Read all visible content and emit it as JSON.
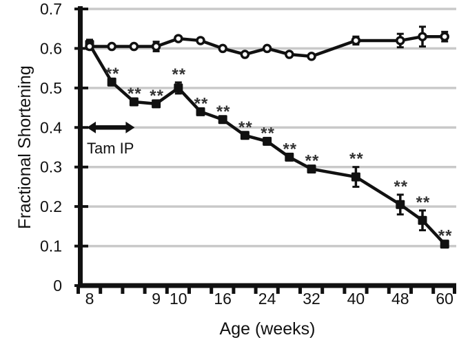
{
  "chart_data": {
    "type": "line",
    "title": "",
    "xlabel": "Age (weeks)",
    "ylabel": "Fractional Shortening",
    "ylim": [
      0,
      0.7
    ],
    "grid": true,
    "background_color": "#ffffff",
    "grid_color": "#c9c9c9",
    "line_color": "#111111",
    "sig_color": "#333333",
    "sig_symbol": "**",
    "x_slot_count": 17,
    "yticks": [
      {
        "v": 0.0,
        "label": "0"
      },
      {
        "v": 0.1,
        "label": "0.1"
      },
      {
        "v": 0.2,
        "label": "0.2"
      },
      {
        "v": 0.3,
        "label": "0.3"
      },
      {
        "v": 0.4,
        "label": "0.4"
      },
      {
        "v": 0.5,
        "label": "0.5"
      },
      {
        "v": 0.6,
        "label": "0.6"
      },
      {
        "v": 0.7,
        "label": "0.7"
      }
    ],
    "xticks": [
      {
        "slot": 0,
        "label": "8"
      },
      {
        "slot": 3,
        "label": "9"
      },
      {
        "slot": 4,
        "label": "10"
      },
      {
        "slot": 6,
        "label": "16"
      },
      {
        "slot": 8,
        "label": "24"
      },
      {
        "slot": 10,
        "label": "32"
      },
      {
        "slot": 12,
        "label": "40"
      },
      {
        "slot": 14,
        "label": "48"
      },
      {
        "slot": 16,
        "label": "60"
      }
    ],
    "annotation": {
      "label": "Tam IP",
      "arrow_slot_span": [
        0,
        2
      ],
      "arrow_v": 0.4
    },
    "series": [
      {
        "name": "series-filled-squares",
        "marker": "square-filled",
        "points": [
          {
            "slot": 0,
            "v": 0.61,
            "err": 0.012,
            "sig": false
          },
          {
            "slot": 1,
            "v": 0.515,
            "err": 0,
            "sig": true
          },
          {
            "slot": 2,
            "v": 0.465,
            "err": 0,
            "sig": true
          },
          {
            "slot": 3,
            "v": 0.46,
            "err": 0,
            "sig": true
          },
          {
            "slot": 4,
            "v": 0.5,
            "err": 0.014,
            "sig": true
          },
          {
            "slot": 5,
            "v": 0.44,
            "err": 0,
            "sig": true
          },
          {
            "slot": 6,
            "v": 0.42,
            "err": 0,
            "sig": true
          },
          {
            "slot": 7,
            "v": 0.38,
            "err": 0,
            "sig": true
          },
          {
            "slot": 8,
            "v": 0.365,
            "err": 0,
            "sig": true
          },
          {
            "slot": 9,
            "v": 0.325,
            "err": 0,
            "sig": true
          },
          {
            "slot": 10,
            "v": 0.295,
            "err": 0,
            "sig": true
          },
          {
            "slot": 12,
            "v": 0.275,
            "err": 0.025,
            "sig": true
          },
          {
            "slot": 14,
            "v": 0.205,
            "err": 0.025,
            "sig": true
          },
          {
            "slot": 15,
            "v": 0.165,
            "err": 0.025,
            "sig": true
          },
          {
            "slot": 16,
            "v": 0.105,
            "err": 0,
            "sig": true
          }
        ]
      },
      {
        "name": "series-open-circles",
        "marker": "circle-open",
        "points": [
          {
            "slot": 0,
            "v": 0.605,
            "err": 0,
            "sig": false
          },
          {
            "slot": 1,
            "v": 0.605,
            "err": 0,
            "sig": false
          },
          {
            "slot": 2,
            "v": 0.605,
            "err": 0,
            "sig": false
          },
          {
            "slot": 3,
            "v": 0.605,
            "err": 0.012,
            "sig": false
          },
          {
            "slot": 4,
            "v": 0.625,
            "err": 0,
            "sig": false
          },
          {
            "slot": 5,
            "v": 0.62,
            "err": 0,
            "sig": false
          },
          {
            "slot": 6,
            "v": 0.6,
            "err": 0,
            "sig": false
          },
          {
            "slot": 7,
            "v": 0.585,
            "err": 0,
            "sig": false
          },
          {
            "slot": 8,
            "v": 0.6,
            "err": 0,
            "sig": false
          },
          {
            "slot": 9,
            "v": 0.585,
            "err": 0,
            "sig": false
          },
          {
            "slot": 10,
            "v": 0.58,
            "err": 0,
            "sig": false
          },
          {
            "slot": 12,
            "v": 0.62,
            "err": 0.01,
            "sig": false
          },
          {
            "slot": 14,
            "v": 0.62,
            "err": 0.017,
            "sig": false
          },
          {
            "slot": 15,
            "v": 0.63,
            "err": 0.025,
            "sig": false
          },
          {
            "slot": 16,
            "v": 0.63,
            "err": 0.012,
            "sig": false
          }
        ]
      }
    ]
  }
}
